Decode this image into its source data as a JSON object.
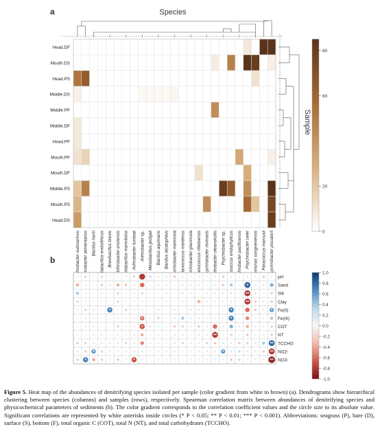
{
  "panel_a": {
    "label": "a",
    "column_axis_title": "Species",
    "row_axis_title": "Sample",
    "colorbar_ticks": [
      "0",
      "20",
      "60",
      "80"
    ],
    "colorbar_tick_values": [
      0,
      20,
      60,
      80
    ],
    "colorbar_colors": [
      "#ffffff",
      "#d9b17e",
      "#a86b35",
      "#5a341a"
    ]
  },
  "panel_b": {
    "label": "b",
    "colorbar_ticks": [
      "1.0",
      "0.8",
      "0.6",
      "0.4",
      "0.2",
      "0.0",
      "-0.2",
      "-0.4",
      "-0.6",
      "-0.8",
      "-1.0"
    ],
    "colorbar_colors": [
      "#0b3a74",
      "#4d8cc2",
      "#b9d6ea",
      "#f7f7f7",
      "#f3b9a6",
      "#cf5a4a",
      "#7d0b17"
    ]
  },
  "chart_data": [
    {
      "type": "heatmap",
      "title": "",
      "rows": [
        "Head.DF",
        "Mouth.DS",
        "Head.PS",
        "Middle.DS",
        "Middle.PF",
        "Middle.DF",
        "Head.PF",
        "Mouth.PF",
        "Mouth.DF",
        "Middle.PS",
        "Mouth.PS",
        "Head.DS"
      ],
      "columns": [
        "Psychrobacter submarinus",
        "Psychrobacter alimentarius",
        "Bacillus horiri",
        "Metabacillus endolithicus",
        "Brevibacillus brevis",
        "Arthrobacter enclensis",
        "Metabacillus mannitolus",
        "Arthrobacter tumbae",
        "Arthrobacter sp.",
        "Mesobacillus jeotgali",
        "Bacillus aquimaris",
        "Bacillus alcalophilus",
        "Psychrobacter marincola",
        "Planococcus maritimus",
        "Psychrobacter glacincola",
        "Planococcus rifietoensis",
        "Psychrobacter nivimaris",
        "Paenimitrobacter oleanokollis",
        "Psychrobacter sp.",
        "Micrococcus endophyticus",
        "Psychrobacter pacificensis",
        "Psychrobacter celer",
        "Pseudomonas songnenensis",
        "Paracoccus marcusii",
        "Psychrobacter piscatorii"
      ],
      "values": [
        [
          0,
          0,
          0,
          0,
          0,
          0,
          0,
          0,
          0,
          0,
          0,
          0,
          0,
          0,
          0,
          0,
          0,
          0,
          0,
          0,
          0,
          8,
          0,
          85,
          90
        ],
        [
          0,
          0,
          0,
          0,
          0,
          0,
          0,
          0,
          0,
          0,
          0,
          0,
          0,
          0,
          0,
          0,
          0,
          6,
          0,
          45,
          0,
          85,
          75,
          0,
          5
        ],
        [
          50,
          60,
          0,
          0,
          0,
          0,
          0,
          0,
          0,
          0,
          0,
          0,
          0,
          0,
          0,
          0,
          0,
          0,
          0,
          0,
          0,
          0,
          10,
          0,
          0
        ],
        [
          5,
          0,
          0,
          0,
          0,
          0,
          0,
          0,
          2,
          2,
          2,
          2,
          3,
          0,
          0,
          0,
          0,
          0,
          0,
          0,
          0,
          0,
          0,
          0,
          0
        ],
        [
          0,
          0,
          0,
          0,
          0,
          0,
          0,
          0,
          0,
          0,
          0,
          0,
          0,
          0,
          0,
          0,
          0,
          40,
          0,
          0,
          0,
          0,
          0,
          0,
          0
        ],
        [
          8,
          0,
          0,
          0,
          0,
          0,
          0,
          0,
          0,
          0,
          0,
          0,
          0,
          0,
          0,
          0,
          0,
          0,
          0,
          0,
          0,
          0,
          0,
          0,
          0
        ],
        [
          8,
          0,
          0,
          0,
          0,
          0,
          0,
          0,
          0,
          0,
          0,
          0,
          0,
          0,
          0,
          0,
          0,
          0,
          0,
          0,
          0,
          0,
          0,
          0,
          0
        ],
        [
          10,
          15,
          0,
          0,
          0,
          0,
          0,
          0,
          0,
          0,
          0,
          0,
          0,
          0,
          0,
          0,
          0,
          0,
          0,
          0,
          30,
          0,
          0,
          0,
          5
        ],
        [
          0,
          0,
          0,
          0,
          0,
          0,
          0,
          0,
          0,
          0,
          0,
          0,
          0,
          0,
          0,
          10,
          0,
          0,
          0,
          0,
          0,
          28,
          0,
          0,
          0
        ],
        [
          20,
          45,
          0,
          0,
          0,
          0,
          0,
          0,
          0,
          0,
          0,
          0,
          0,
          0,
          0,
          0,
          0,
          0,
          75,
          60,
          0,
          40,
          0,
          0,
          85
        ],
        [
          25,
          0,
          0,
          0,
          0,
          0,
          0,
          0,
          0,
          0,
          0,
          0,
          0,
          0,
          0,
          0,
          40,
          0,
          0,
          0,
          0,
          55,
          20,
          0,
          70
        ],
        [
          35,
          0,
          0,
          0,
          0,
          0,
          0,
          0,
          0,
          0,
          0,
          0,
          0,
          0,
          0,
          0,
          0,
          0,
          0,
          0,
          0,
          0,
          0,
          0,
          75
        ]
      ],
      "color_range": [
        0,
        80
      ]
    },
    {
      "type": "heatmap",
      "title": "",
      "rows": [
        "pH",
        "Sand",
        "Silt",
        "Clay",
        "Fe(II)",
        "Fe(III)",
        "COT",
        "NT",
        "TCCHO",
        "NO2-",
        "NO3-"
      ],
      "columns": [
        "Psychrobacter submarinus",
        "Psychrobacter alimentarius",
        "Bacillus horiri",
        "Metabacillus endolithicus",
        "Brevibacillus brevis",
        "Arthrobacter enclensis",
        "Metabacillus mannitolus",
        "Arthrobacter tumbae",
        "Arthrobacter sp.",
        "Mesobacillus jeotgali",
        "Bacillus aquimaris",
        "Bacillus alcalophilus",
        "Psychrobacter marincola",
        "Planococcus maritimus",
        "Psychrobacter glacincola",
        "Planococcus rifietoensis",
        "Psychrobacter nivimaris",
        "Paenimitrobacter oleanokollis",
        "Psychrobacter sp.",
        "Micrococcus endophyticus",
        "Psychrobacter pacificensis",
        "Psychrobacter celer",
        "Pseudomonas songnenensis",
        "Paracoccus marcusii",
        "Psychrobacter piscatorii"
      ],
      "values": [
        [
          0.1,
          0.3,
          0.1,
          0.3,
          -0.1,
          0.2,
          0.2,
          0.3,
          -0.8,
          0.3,
          -0.2,
          0.2,
          -0.3,
          0.2,
          0.1,
          -0.2,
          0.1,
          0.2,
          0.3,
          0.2,
          0.1,
          0.2,
          0.2,
          -0.3,
          0.2
        ],
        [
          -0.4,
          -0.2,
          0.1,
          -0.3,
          0.2,
          -0.4,
          -0.3,
          -0.2,
          -0.6,
          0.1,
          -0.2,
          0.2,
          -0.1,
          -0.2,
          0.2,
          -0.2,
          0.1,
          0.2,
          -0.3,
          0.4,
          0.1,
          0.8,
          0.2,
          -0.2,
          0.5
        ],
        [
          0.4,
          0.2,
          0.1,
          0.2,
          0.1,
          0.3,
          0.1,
          0.2,
          0.3,
          0.1,
          0.1,
          0.2,
          0.1,
          -0.2,
          0.2,
          0.1,
          0.2,
          0.2,
          0.2,
          -0.2,
          0.1,
          -0.8,
          -0.2,
          0.2,
          -0.3
        ],
        [
          0.3,
          0.2,
          0.1,
          0.2,
          0.1,
          0.3,
          0.1,
          0.2,
          0.2,
          0.1,
          0.1,
          0.2,
          0.1,
          0.2,
          0.1,
          -0.4,
          0.2,
          0.2,
          0.2,
          -0.2,
          0.1,
          -0.8,
          -0.3,
          0.2,
          -0.3
        ],
        [
          0.2,
          0.3,
          -0.2,
          0.1,
          0.7,
          0.1,
          0.3,
          0.2,
          0.2,
          0.1,
          -0.2,
          0.1,
          0.2,
          0.1,
          -0.2,
          0.2,
          0.1,
          0.1,
          0.1,
          0.7,
          0.1,
          -0.6,
          -0.3,
          0.2,
          0.6
        ],
        [
          0.1,
          0.2,
          0.2,
          0.1,
          0.1,
          0.2,
          0.2,
          -0.2,
          -0.6,
          0.2,
          0.3,
          0.1,
          -0.2,
          0.4,
          0.2,
          -0.2,
          0.1,
          0.1,
          0.2,
          0.7,
          0.1,
          -0.5,
          0.1,
          0.2,
          0.4
        ],
        [
          0.1,
          0.2,
          0.2,
          0.1,
          0.1,
          0.3,
          0.2,
          -0.2,
          -0.7,
          0.2,
          0.2,
          0.1,
          -0.3,
          0.3,
          0.2,
          -0.3,
          0.2,
          -0.6,
          0.2,
          0.5,
          0.2,
          -0.4,
          0.2,
          0.2,
          0.3
        ],
        [
          0.1,
          -0.1,
          -0.2,
          0.2,
          0.1,
          0.2,
          0.1,
          -0.2,
          -0.4,
          0.1,
          0.2,
          0.1,
          -0.2,
          0.2,
          0.1,
          -0.2,
          0.2,
          -0.8,
          0.1,
          0.3,
          0.1,
          -0.3,
          0.1,
          0.2,
          -0.3
        ],
        [
          0.3,
          0.3,
          -0.2,
          0.2,
          0.2,
          0.2,
          0.3,
          -0.2,
          -0.5,
          0.2,
          0.2,
          0.1,
          -0.2,
          0.3,
          0.2,
          -0.2,
          0.3,
          -0.3,
          0.2,
          0.2,
          -0.3,
          0.3,
          -0.2,
          0.4,
          0.8
        ],
        [
          0.2,
          -0.3,
          0.6,
          0.3,
          0.2,
          0.2,
          0.2,
          -0.2,
          0.2,
          0.1,
          0.2,
          0.2,
          -0.2,
          0.1,
          0.1,
          0.2,
          0.2,
          0.2,
          0.6,
          0.2,
          0.3,
          0.2,
          -0.2,
          -0.3,
          -0.8
        ],
        [
          0.3,
          0.7,
          -0.4,
          0.3,
          0.2,
          -0.3,
          0.2,
          -0.7,
          0.2,
          0.1,
          0.2,
          0.2,
          0.2,
          0.1,
          0.2,
          0.2,
          0.2,
          0.2,
          0.2,
          -0.3,
          0.3,
          0.2,
          0.2,
          -0.2,
          -0.9
        ]
      ],
      "stars": [
        [
          0,
          0,
          0,
          0,
          0,
          0,
          0,
          0,
          0,
          0,
          0,
          0,
          0,
          0,
          0,
          0,
          0,
          0,
          0,
          0,
          0,
          0,
          0,
          0,
          0
        ],
        [
          0,
          0,
          0,
          0,
          0,
          0,
          0,
          0,
          0,
          0,
          0,
          0,
          0,
          0,
          0,
          0,
          0,
          0,
          0,
          0,
          0,
          1,
          0,
          0,
          0
        ],
        [
          0,
          0,
          0,
          0,
          0,
          0,
          0,
          0,
          0,
          0,
          0,
          0,
          0,
          0,
          0,
          0,
          0,
          0,
          0,
          0,
          0,
          2,
          0,
          0,
          0
        ],
        [
          0,
          0,
          0,
          0,
          0,
          0,
          0,
          0,
          0,
          0,
          0,
          0,
          0,
          0,
          0,
          0,
          0,
          0,
          0,
          0,
          0,
          2,
          0,
          0,
          0
        ],
        [
          0,
          0,
          0,
          0,
          1,
          0,
          0,
          0,
          0,
          0,
          0,
          0,
          0,
          0,
          0,
          0,
          0,
          0,
          0,
          1,
          0,
          0,
          0,
          0,
          1
        ],
        [
          0,
          0,
          0,
          0,
          0,
          0,
          0,
          0,
          1,
          0,
          0,
          0,
          0,
          0,
          0,
          0,
          0,
          0,
          0,
          1,
          0,
          0,
          0,
          0,
          0
        ],
        [
          0,
          0,
          0,
          0,
          0,
          0,
          0,
          0,
          1,
          0,
          0,
          0,
          0,
          0,
          0,
          0,
          0,
          0,
          0,
          0,
          0,
          0,
          0,
          0,
          0
        ],
        [
          0,
          0,
          0,
          0,
          0,
          0,
          0,
          0,
          0,
          0,
          0,
          0,
          0,
          0,
          0,
          0,
          0,
          2,
          0,
          0,
          0,
          0,
          0,
          0,
          0
        ],
        [
          0,
          0,
          0,
          0,
          0,
          0,
          0,
          0,
          0,
          0,
          0,
          0,
          0,
          0,
          0,
          0,
          0,
          0,
          0,
          0,
          0,
          0,
          0,
          0,
          2
        ],
        [
          0,
          0,
          1,
          0,
          0,
          0,
          0,
          0,
          0,
          0,
          0,
          0,
          0,
          0,
          0,
          0,
          0,
          0,
          1,
          0,
          0,
          0,
          0,
          0,
          2
        ],
        [
          0,
          1,
          0,
          0,
          0,
          0,
          0,
          1,
          0,
          0,
          0,
          0,
          0,
          0,
          0,
          0,
          0,
          0,
          0,
          0,
          0,
          0,
          0,
          0,
          2
        ]
      ],
      "color_range": [
        -1.0,
        1.0
      ]
    }
  ],
  "caption": {
    "figure_label": "Figure 5.",
    "text": " Heat map of the abundances of denitrifying species isolated per sample (color gradient from white to brown) (a). Dendrograms show hierarchical clustering between species (columns) and samples (rows), respectively. Spearman correlation matrix between abundances of denitrifying species and physicochemical parameters of sediments (b). The color gradient corresponds to the correlation coefficient values and the circle size to its absolute value. Significant correlations are represented by white asterisks inside circles (* P < 0.05; ** P < 0.01; *** P < 0.001). Abbreviations: seagrass (P), bare (D), surface (S), bottom (F), total organic C (COT), total N (NT), and total carbohydrates (TCCHO)."
  }
}
